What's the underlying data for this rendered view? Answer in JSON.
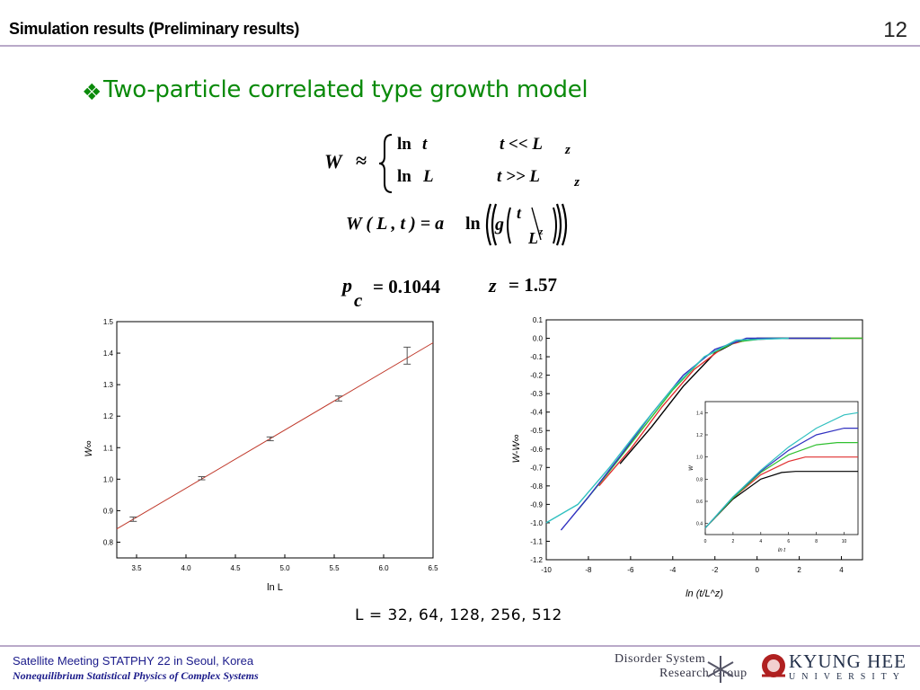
{
  "header": {
    "title": "Simulation results (Preliminary results)",
    "page_number": "12"
  },
  "bullet": {
    "symbol": "❖",
    "text": "Two-particle correlated type growth model"
  },
  "equations": {
    "w": "W",
    "approx": "≈",
    "case1_fn": "ln",
    "case1_var": "t",
    "case1_cond": "t  <<  L",
    "case1_sub": "z",
    "case2_fn": "ln",
    "case2_var": "L",
    "case2_cond": "t  >>  L",
    "case2_sub": "z",
    "scaling_lhs": "W ( L , t ) = a",
    "scaling_fn": "ln",
    "scaling_g": "g",
    "scaling_t": "t",
    "scaling_L": "L",
    "scaling_z": "z",
    "pc_p": "p",
    "pc_c": "c",
    "pc_value": "= 0.1044",
    "z_label": "z",
    "z_value": "=  1.57"
  },
  "caption": "L = 32, 64, 128, 256, 512",
  "footer": {
    "line1": "Satellite Meeting STATPHY 22 in Seoul, Korea",
    "line2": "Nonequilibrium Statistical Physics of Complex Systems"
  },
  "logos": {
    "dsrg_line1": "Disorder System",
    "dsrg_line2": "Research Group",
    "khu_line1": "KYUNG HEE",
    "khu_line2": "UNIVERSITY"
  },
  "chart_data": [
    {
      "type": "scatter",
      "xlabel": "ln L",
      "ylabel": "W∞",
      "xlim": [
        3.3,
        6.5
      ],
      "ylim": [
        0.75,
        1.5
      ],
      "xticks": [
        "3.5",
        "4.0",
        "4.5",
        "5.0",
        "5.5",
        "6.0",
        "6.5"
      ],
      "yticks": [
        "0.8",
        "0.9",
        "1.0",
        "1.1",
        "1.2",
        "1.3",
        "1.4",
        "1.5"
      ],
      "points": [
        {
          "x": 3.466,
          "y": 0.873,
          "err": 0.007
        },
        {
          "x": 4.159,
          "y": 1.003,
          "err": 0.005
        },
        {
          "x": 4.852,
          "y": 1.128,
          "err": 0.006
        },
        {
          "x": 5.545,
          "y": 1.256,
          "err": 0.008
        },
        {
          "x": 6.238,
          "y": 1.392,
          "err": 0.027
        }
      ],
      "fit_line": {
        "color": "#c0392b",
        "x": [
          3.3,
          6.5
        ],
        "y": [
          0.842,
          1.433
        ]
      },
      "grid": false
    },
    {
      "type": "line",
      "xlabel": "ln (t/L^z)",
      "ylabel": "W-W∞",
      "xlim": [
        -10,
        5
      ],
      "ylim": [
        -1.2,
        0.1
      ],
      "xticks": [
        "-10",
        "-8",
        "-6",
        "-4",
        "-2",
        "0",
        "2",
        "4"
      ],
      "yticks": [
        "0.1",
        "0.0",
        "-0.1",
        "-0.2",
        "-0.3",
        "-0.4",
        "-0.5",
        "-0.6",
        "-0.7",
        "-0.8",
        "-0.9",
        "-1.0",
        "-1.1",
        "-1.2"
      ],
      "series": [
        {
          "color": "#000000",
          "x": [
            -6.5,
            -5,
            -3.5,
            -2,
            -1,
            0,
            1,
            3
          ],
          "y": [
            -0.68,
            -0.48,
            -0.26,
            -0.08,
            -0.02,
            0.0,
            0.0,
            0.0
          ]
        },
        {
          "color": "#e03030",
          "x": [
            -7.5,
            -6,
            -4.5,
            -3,
            -1.5,
            -0.5,
            1,
            5
          ],
          "y": [
            -0.8,
            -0.6,
            -0.37,
            -0.17,
            -0.04,
            -0.01,
            0.0,
            0.0
          ]
        },
        {
          "color": "#30c030",
          "x": [
            -8.5,
            -7,
            -5.5,
            -4,
            -2.5,
            -1,
            0.5,
            5
          ],
          "y": [
            -0.93,
            -0.72,
            -0.5,
            -0.28,
            -0.1,
            -0.02,
            0.0,
            0.0
          ]
        },
        {
          "color": "#3030c0",
          "x": [
            -9.3,
            -8,
            -6.5,
            -5,
            -3.5,
            -2,
            -0.5,
            3.5
          ],
          "y": [
            -1.04,
            -0.86,
            -0.64,
            -0.41,
            -0.2,
            -0.06,
            0.0,
            0.0
          ]
        },
        {
          "color": "#30c0c0",
          "x": [
            -10,
            -8.5,
            -7,
            -5.5,
            -4,
            -2.5,
            -1,
            1.5
          ],
          "y": [
            -1.0,
            -0.9,
            -0.7,
            -0.48,
            -0.27,
            -0.1,
            -0.01,
            0.0
          ]
        }
      ],
      "inset": {
        "xlabel": "ln t",
        "ylabel": "W",
        "xlim": [
          0,
          11
        ],
        "ylim": [
          0.3,
          1.5
        ],
        "xticks": [
          "0",
          "2",
          "4",
          "6",
          "8",
          "10"
        ],
        "yticks": [
          "0.4",
          "0.6",
          "0.8",
          "1.0",
          "1.2",
          "1.4"
        ],
        "series": [
          {
            "color": "#000000",
            "x": [
              0,
              2,
              4,
              5.5,
              6.5,
              8,
              11
            ],
            "y": [
              0.36,
              0.62,
              0.8,
              0.86,
              0.87,
              0.87,
              0.87
            ]
          },
          {
            "color": "#e03030",
            "x": [
              0,
              2,
              4,
              6,
              7.2,
              8.5,
              11
            ],
            "y": [
              0.36,
              0.63,
              0.84,
              0.96,
              1.0,
              1.0,
              1.0
            ]
          },
          {
            "color": "#30c030",
            "x": [
              0,
              2,
              4,
              6,
              8,
              9.5,
              11
            ],
            "y": [
              0.36,
              0.63,
              0.86,
              1.02,
              1.11,
              1.13,
              1.13
            ]
          },
          {
            "color": "#3030c0",
            "x": [
              0,
              2,
              4,
              6,
              8,
              10,
              11
            ],
            "y": [
              0.36,
              0.64,
              0.87,
              1.06,
              1.2,
              1.26,
              1.26
            ]
          },
          {
            "color": "#30c0c0",
            "x": [
              0,
              2,
              4,
              6,
              8,
              10,
              11
            ],
            "y": [
              0.36,
              0.64,
              0.88,
              1.09,
              1.26,
              1.38,
              1.4
            ]
          }
        ]
      }
    }
  ]
}
